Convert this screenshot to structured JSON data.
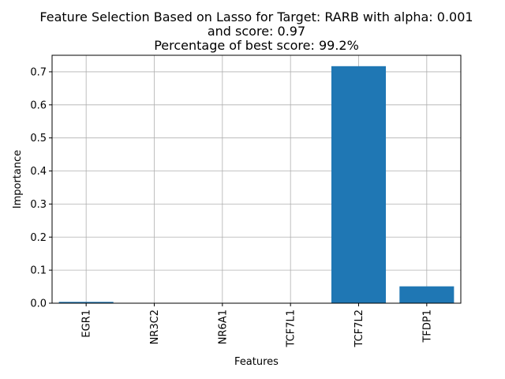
{
  "chart_data": {
    "type": "bar",
    "title_lines": [
      "Feature Selection Based on Lasso for Target: RARB with alpha: 0.001",
      "and score: 0.97",
      "Percentage of best score: 99.2%"
    ],
    "xlabel": "Features",
    "ylabel": "Importance",
    "categories": [
      "EGR1",
      "NR3C2",
      "NR6A1",
      "TCF7L1",
      "TCF7L2",
      "TFDP1"
    ],
    "values": [
      0.004,
      0.0,
      0.0,
      0.0,
      0.717,
      0.051
    ],
    "ylim": [
      0,
      0.75
    ],
    "yticks": [
      0.0,
      0.1,
      0.2,
      0.3,
      0.4,
      0.5,
      0.6,
      0.7
    ],
    "ytick_labels": [
      "0.0",
      "0.1",
      "0.2",
      "0.3",
      "0.4",
      "0.5",
      "0.6",
      "0.7"
    ],
    "grid": true,
    "bar_color": "#1f77b4"
  }
}
